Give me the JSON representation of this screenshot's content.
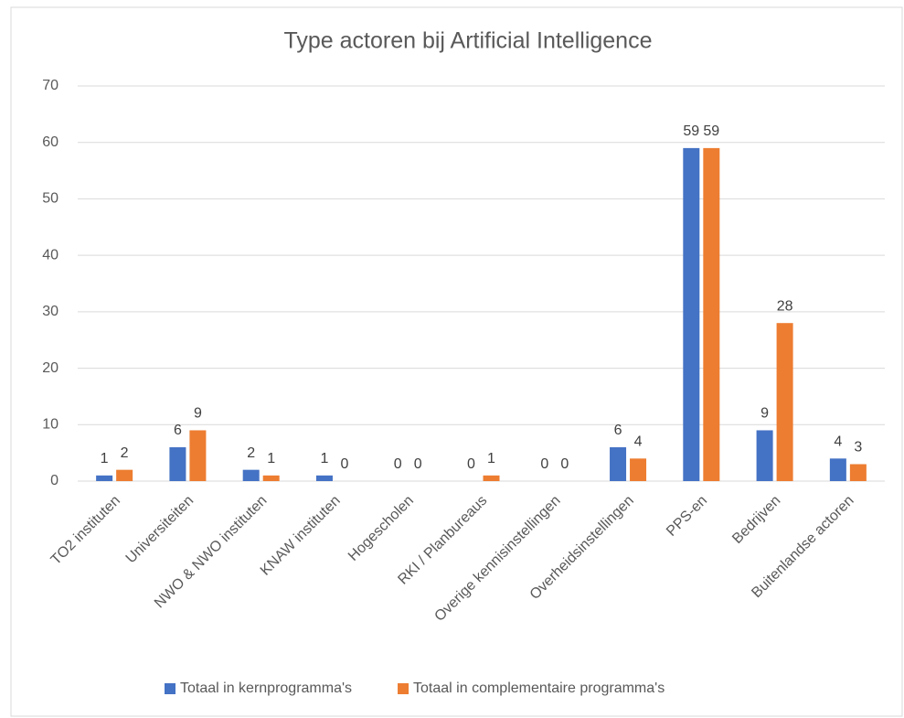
{
  "chart_data": {
    "type": "bar",
    "title": "Type actoren bij Artificial Intelligence",
    "categories": [
      "TO2 instituten",
      "Universiteiten",
      "NWO & NWO instituten",
      "KNAW instituten",
      "Hogescholen",
      "RKI / Planbureaus",
      "Overige kennisinstellingen",
      "Overheidsinstellingen",
      "PPS-en",
      "Bedrijven",
      "Buitenlandse actoren"
    ],
    "series": [
      {
        "name": "Totaal in kernprogramma's",
        "color": "#4472c4",
        "values": [
          1,
          6,
          2,
          1,
          0,
          0,
          0,
          6,
          59,
          9,
          4
        ]
      },
      {
        "name": "Totaal in complementaire programma's",
        "color": "#ed7d31",
        "values": [
          2,
          9,
          1,
          0,
          0,
          1,
          0,
          4,
          59,
          28,
          3
        ]
      }
    ],
    "ylim": [
      0,
      70
    ],
    "yticks": [
      0,
      10,
      20,
      30,
      40,
      50,
      60,
      70
    ],
    "grid": true,
    "legend": "bottom"
  }
}
